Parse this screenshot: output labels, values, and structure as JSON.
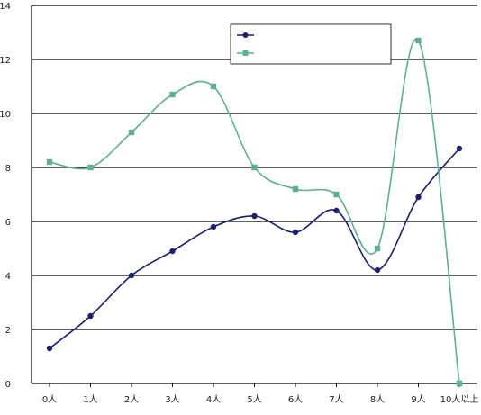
{
  "chart_data": {
    "type": "line",
    "categories": [
      "0人",
      "1人",
      "2人",
      "3人",
      "4人",
      "5人",
      "6人",
      "7人",
      "8人",
      "9人",
      "10人以上"
    ],
    "ylim": [
      0,
      14
    ],
    "yticks": [
      0,
      2,
      4,
      6,
      8,
      10,
      12,
      14
    ],
    "grid": true,
    "legend_position": "top-right",
    "series": [
      {
        "name": "",
        "color": "#1a1f6e",
        "marker": "circle",
        "values": [
          1.3,
          2.5,
          4.0,
          4.9,
          5.8,
          6.2,
          5.6,
          6.4,
          4.2,
          6.9,
          8.7
        ]
      },
      {
        "name": "",
        "color": "#5fae96",
        "marker": "square",
        "values": [
          8.2,
          8.0,
          9.3,
          10.7,
          11.0,
          8.0,
          7.2,
          7.0,
          5.0,
          12.7,
          0.0
        ]
      }
    ]
  }
}
